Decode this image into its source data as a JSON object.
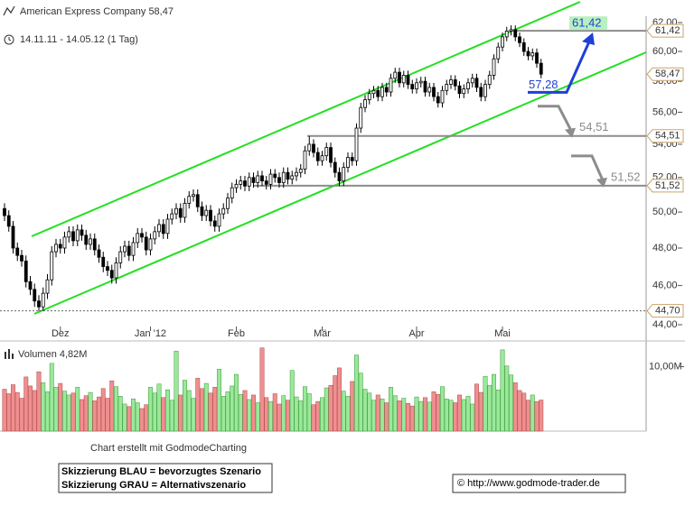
{
  "chart_data": {
    "type": "candlestick",
    "title": "American Express Company 58,47",
    "subtitle": "14.11.11 - 14.05.12 (1 Tag)",
    "log_scale": true,
    "ylim": [
      44,
      62
    ],
    "yticks": [
      {
        "value": 44,
        "label": "44,00"
      },
      {
        "value": 46,
        "label": "46,00"
      },
      {
        "value": 48,
        "label": "48,00"
      },
      {
        "value": 50,
        "label": "50,00"
      },
      {
        "value": 52,
        "label": "52,00"
      },
      {
        "value": 54,
        "label": "54,00"
      },
      {
        "value": 56,
        "label": "56,00"
      },
      {
        "value": 58,
        "label": "58,00"
      },
      {
        "value": 60,
        "label": "60,00"
      },
      {
        "value": 62,
        "label": "62,00"
      }
    ],
    "xticks": [
      {
        "value": 13,
        "label": "Dez"
      },
      {
        "value": 34,
        "label": "Jan '12"
      },
      {
        "value": 54,
        "label": "Feb"
      },
      {
        "value": 74,
        "label": "Mär"
      },
      {
        "value": 96,
        "label": "Apr"
      },
      {
        "value": 116,
        "label": "Mai"
      }
    ],
    "up_color": "#ffffff",
    "down_color": "#000000",
    "open": [
      50.2,
      49.8,
      49.2,
      48.0,
      47.6,
      47.3,
      46.2,
      45.8,
      45.2,
      44.9,
      45.6,
      46.3,
      47.8,
      48.2,
      48.0,
      48.6,
      48.9,
      48.4,
      49.0,
      48.7,
      48.2,
      48.5,
      47.9,
      47.5,
      47.0,
      46.8,
      46.4,
      47.2,
      47.8,
      48.1,
      47.6,
      48.3,
      48.8,
      48.6,
      47.9,
      48.5,
      48.9,
      49.3,
      48.8,
      49.6,
      49.9,
      50.2,
      49.7,
      50.5,
      50.9,
      51.0,
      50.3,
      49.8,
      50.1,
      49.5,
      49.2,
      49.9,
      50.2,
      50.8,
      51.4,
      51.6,
      51.8,
      51.5,
      52.0,
      51.7,
      52.1,
      51.8,
      51.6,
      52.2,
      52.0,
      51.7,
      52.3,
      51.9,
      52.1,
      52.3,
      52.5,
      53.6,
      54.0,
      53.5,
      53.0,
      53.3,
      53.8,
      52.9,
      52.3,
      51.8,
      52.6,
      53.2,
      53.0,
      55.0,
      56.3,
      56.8,
      57.2,
      57.4,
      57.0,
      57.6,
      57.3,
      58.2,
      58.6,
      57.9,
      58.4,
      57.8,
      57.5,
      57.9,
      58.0,
      57.3,
      57.6,
      57.0,
      56.6,
      57.4,
      57.8,
      58.1,
      57.7,
      57.2,
      57.5,
      57.9,
      58.2,
      57.6,
      57.0,
      57.8,
      58.4,
      59.5,
      60.3,
      61.0,
      61.4,
      61.5,
      61.0,
      60.6,
      60.0,
      59.7,
      59.9,
      59.2
    ],
    "high": [
      50.5,
      50.1,
      49.5,
      48.3,
      47.9,
      47.6,
      46.5,
      46.1,
      45.5,
      45.9,
      46.6,
      48.1,
      48.5,
      48.5,
      48.9,
      49.2,
      49.2,
      49.3,
      49.3,
      49.0,
      48.8,
      48.8,
      48.2,
      47.8,
      47.3,
      47.1,
      47.5,
      48.1,
      48.4,
      48.4,
      48.6,
      49.1,
      49.1,
      48.9,
      48.8,
      49.2,
      49.6,
      49.6,
      49.9,
      50.2,
      50.5,
      50.5,
      50.8,
      51.2,
      51.3,
      51.3,
      50.6,
      50.4,
      50.4,
      49.8,
      50.2,
      50.5,
      51.1,
      51.7,
      51.9,
      52.1,
      52.1,
      52.3,
      52.3,
      52.4,
      52.4,
      52.1,
      52.5,
      52.5,
      52.3,
      52.6,
      52.6,
      52.4,
      52.6,
      52.8,
      53.9,
      54.5,
      54.3,
      53.8,
      53.6,
      54.1,
      54.1,
      53.2,
      52.6,
      52.9,
      53.5,
      53.5,
      55.3,
      56.6,
      57.1,
      57.5,
      57.7,
      57.7,
      57.9,
      57.9,
      58.5,
      58.9,
      58.9,
      58.7,
      58.7,
      58.1,
      58.2,
      58.3,
      58.3,
      57.9,
      57.9,
      57.3,
      57.7,
      58.1,
      58.4,
      58.4,
      58.0,
      57.8,
      58.2,
      58.5,
      58.5,
      57.9,
      58.1,
      58.7,
      59.8,
      60.6,
      61.3,
      61.7,
      61.8,
      61.8,
      61.3,
      60.9,
      60.3,
      60.2,
      60.2,
      59.5
    ],
    "low": [
      49.5,
      48.9,
      47.7,
      47.3,
      47.0,
      45.9,
      45.5,
      44.9,
      44.7,
      44.7,
      45.3,
      46.0,
      47.5,
      47.7,
      47.7,
      48.3,
      48.1,
      48.1,
      48.4,
      47.9,
      47.9,
      47.6,
      47.2,
      46.7,
      46.5,
      46.1,
      46.1,
      46.9,
      47.5,
      47.3,
      47.3,
      48.0,
      48.3,
      47.6,
      47.6,
      48.2,
      48.6,
      48.5,
      48.5,
      49.3,
      49.6,
      49.4,
      49.4,
      50.2,
      50.6,
      50.0,
      49.5,
      49.5,
      49.2,
      48.9,
      48.9,
      49.6,
      49.9,
      50.5,
      51.1,
      51.3,
      51.2,
      51.2,
      51.4,
      51.4,
      51.5,
      51.3,
      51.3,
      51.7,
      51.4,
      51.4,
      51.6,
      51.6,
      51.8,
      52.0,
      52.2,
      53.3,
      53.2,
      52.7,
      52.7,
      53.0,
      52.6,
      52.0,
      51.5,
      51.5,
      52.3,
      52.7,
      52.7,
      54.7,
      56.0,
      56.5,
      56.9,
      56.7,
      56.7,
      57.0,
      57.0,
      57.9,
      57.6,
      57.6,
      57.5,
      57.2,
      57.2,
      57.6,
      57.0,
      57.0,
      56.7,
      56.3,
      56.3,
      57.1,
      57.5,
      57.4,
      56.9,
      56.9,
      57.2,
      57.6,
      57.3,
      56.7,
      56.7,
      57.5,
      58.1,
      59.2,
      60.0,
      60.7,
      61.1,
      60.7,
      60.3,
      59.7,
      59.4,
      59.4,
      58.9,
      58.2
    ],
    "close": [
      49.8,
      49.2,
      48.0,
      47.6,
      47.3,
      46.2,
      45.8,
      45.2,
      44.9,
      45.6,
      46.3,
      47.8,
      48.2,
      48.0,
      48.6,
      48.9,
      48.4,
      49.0,
      48.7,
      48.2,
      48.5,
      47.9,
      47.5,
      47.0,
      46.8,
      46.4,
      47.2,
      47.8,
      48.1,
      47.6,
      48.3,
      48.8,
      48.6,
      47.9,
      48.5,
      48.9,
      49.3,
      48.8,
      49.6,
      49.9,
      50.2,
      49.7,
      50.5,
      50.9,
      51.0,
      50.3,
      49.8,
      50.1,
      49.5,
      49.2,
      49.9,
      50.2,
      50.8,
      51.4,
      51.6,
      51.8,
      51.5,
      52.0,
      51.7,
      52.1,
      51.8,
      51.6,
      52.2,
      52.0,
      51.7,
      52.3,
      51.9,
      52.1,
      52.3,
      52.5,
      53.6,
      54.0,
      53.5,
      53.0,
      53.3,
      53.8,
      52.9,
      52.3,
      51.8,
      52.6,
      53.2,
      53.0,
      55.0,
      56.3,
      56.8,
      57.2,
      57.4,
      57.0,
      57.6,
      57.3,
      58.2,
      58.6,
      57.9,
      58.4,
      57.8,
      57.5,
      57.9,
      58.0,
      57.3,
      57.6,
      57.0,
      56.6,
      57.4,
      57.8,
      58.1,
      57.7,
      57.2,
      57.5,
      57.9,
      58.2,
      57.6,
      57.0,
      57.8,
      58.4,
      59.5,
      60.3,
      61.0,
      61.4,
      61.5,
      61.0,
      60.6,
      60.0,
      59.7,
      59.9,
      59.2,
      58.47
    ],
    "price_flags": [
      {
        "value": 61.42,
        "label": "61,42",
        "line": "solid"
      },
      {
        "value": 58.47,
        "label": "58,47"
      },
      {
        "value": 54.51,
        "label": "54,51",
        "line": "solid"
      },
      {
        "value": 51.52,
        "label": "51,52",
        "line": "solid"
      },
      {
        "value": 44.7,
        "label": "44,70",
        "line": "dashed"
      }
    ],
    "scenario_blue": {
      "from": {
        "value": 57.28,
        "label": "57,28"
      },
      "to": {
        "value": 61.42,
        "label": "61,42"
      },
      "color": "#1f3fd8"
    },
    "scenario_gray": {
      "targets": [
        {
          "value": 54.51,
          "label": "54,51"
        },
        {
          "value": 51.52,
          "label": "51,52"
        }
      ],
      "color": "#8c8c8c"
    },
    "volume": {
      "title": "Volumen 4,82M",
      "ylim": [
        0,
        13
      ],
      "yticks": [
        {
          "value": 10,
          "label": "10,00M"
        }
      ],
      "up_color": "#9be89b",
      "down_color": "#ef8f8f",
      "values": [
        6.5,
        5.8,
        7.2,
        6.0,
        5.1,
        8.4,
        7.0,
        6.3,
        9.2,
        7.5,
        6.1,
        10.5,
        6.8,
        7.4,
        6.2,
        5.6,
        5.9,
        6.8,
        4.9,
        5.5,
        6.0,
        4.7,
        5.3,
        6.6,
        5.1,
        7.8,
        6.9,
        5.4,
        4.2,
        3.8,
        5.0,
        4.4,
        3.5,
        4.1,
        6.8,
        5.9,
        7.3,
        5.2,
        6.4,
        4.8,
        12.4,
        5.6,
        7.9,
        6.3,
        5.1,
        8.2,
        6.6,
        7.4,
        5.9,
        6.8,
        9.6,
        5.4,
        6.1,
        7.0,
        8.8,
        5.7,
        6.3,
        4.9,
        5.6,
        4.4,
        12.9,
        5.2,
        4.6,
        5.8,
        4.2,
        5.5,
        4.8,
        9.4,
        5.3,
        4.7,
        6.9,
        5.8,
        4.1,
        4.6,
        5.2,
        6.7,
        7.1,
        8.6,
        9.8,
        6.2,
        5.4,
        7.7,
        11.8,
        9.0,
        6.5,
        5.9,
        4.8,
        5.6,
        5.0,
        4.4,
        6.8,
        5.5,
        4.7,
        5.1,
        4.3,
        3.9,
        5.3,
        4.6,
        5.2,
        4.5,
        6.1,
        5.7,
        6.9,
        5.0,
        4.8,
        4.4,
        5.6,
        4.9,
        5.4,
        4.2,
        7.3,
        6.0,
        8.5,
        7.1,
        8.8,
        6.4,
        12.6,
        10.1,
        8.7,
        7.5,
        6.3,
        5.9,
        4.8,
        5.6,
        4.6,
        4.82
      ]
    },
    "credit": "Chart erstellt mit GodmodeCharting",
    "legend_notes": [
      "Skizzierung BLAU = bevorzugtes Szenario",
      "Skizzierung GRAU = Alternativszenario"
    ],
    "source": "© http://www.godmode-trader.de"
  }
}
